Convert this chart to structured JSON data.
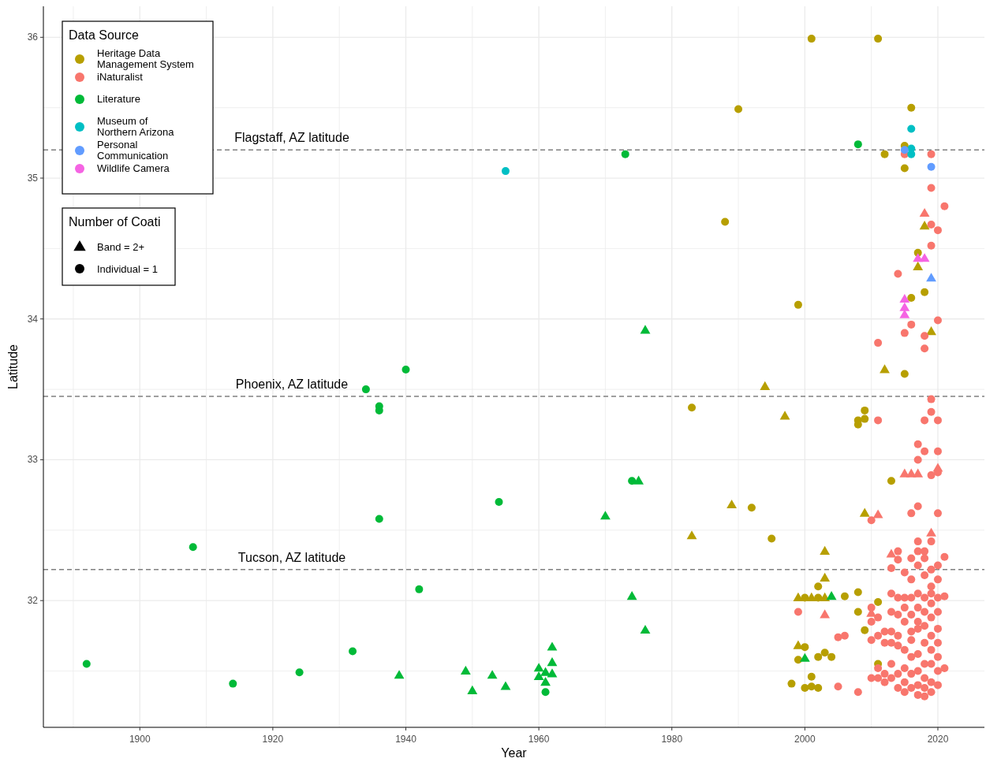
{
  "chart_data": {
    "type": "scatter",
    "xlabel": "Year",
    "ylabel": "Latitude",
    "legend_title": "Data Source",
    "legend": "top left",
    "grid": true,
    "annotations": [
      "Number of Coati",
      "Band = 2+",
      "Individual = 1"
    ],
    "xlim": [
      1885.5,
      2027
    ],
    "ylim": [
      31.1,
      36.22
    ],
    "xticks": [
      {
        "value": 1890,
        "label": null
      },
      1900,
      {
        "value": 1910,
        "label": null
      },
      1920,
      {
        "value": 1930,
        "label": null
      },
      1940,
      {
        "value": 1950,
        "label": null
      },
      1960,
      {
        "value": 1970,
        "label": null
      },
      1980,
      {
        "value": 1990,
        "label": null
      },
      2000,
      {
        "value": 2010,
        "label": null
      },
      2020
    ],
    "yticks": [
      {
        "value": 31.5,
        "label": null
      },
      32,
      {
        "value": 32.5,
        "label": null
      },
      33,
      {
        "value": 33.5,
        "label": null
      },
      34,
      {
        "value": 34.5,
        "label": null
      },
      35,
      {
        "value": 35.5,
        "label": null
      },
      36
    ],
    "ref_lines": [
      {
        "axis": "y",
        "value": 35.2,
        "label": "Flagstaff, AZ latitude",
        "color": "#808080",
        "line_style": "dashed"
      },
      {
        "axis": "y",
        "value": 33.45,
        "label": "Phoenix, AZ latitude",
        "color": "#808080",
        "line_style": "dashed"
      },
      {
        "axis": "y",
        "value": 32.22,
        "label": "Tucson, AZ latitude",
        "color": "#808080",
        "line_style": "dashed"
      }
    ],
    "series": [
      {
        "name": "Heritage Data Management System",
        "color": "#b79f00",
        "marker": "circle",
        "x": [
          2001,
          2011,
          1990,
          2016,
          2015,
          2012,
          2015,
          1988,
          1999,
          2017,
          2016,
          2018,
          1983,
          2015,
          2009,
          2008,
          2008,
          2009,
          1992,
          1995,
          2013,
          2011,
          2008,
          2006,
          2002,
          2002,
          2004,
          2000,
          2009,
          2011,
          1998,
          2000,
          2001,
          2001,
          2002,
          2003,
          2008,
          1999,
          2000,
          2002
        ],
        "values": [
          35.99,
          35.99,
          35.49,
          35.5,
          35.23,
          35.17,
          35.07,
          34.69,
          34.1,
          34.47,
          34.15,
          34.19,
          33.37,
          33.61,
          33.35,
          33.28,
          33.25,
          33.29,
          32.66,
          32.44,
          32.85,
          31.99,
          32.06,
          32.03,
          32.1,
          31.6,
          31.6,
          31.67,
          31.79,
          31.55,
          31.41,
          31.38,
          31.46,
          31.39,
          31.38,
          31.63,
          31.92,
          31.58,
          32.02,
          32.02
        ]
      },
      {
        "color": "#b79f00",
        "marker": "triangle",
        "x": [
          2012,
          1994,
          1997,
          1989,
          1983,
          2009,
          2003,
          2003,
          1999,
          2001,
          2003,
          1999,
          2018,
          2017,
          2019
        ],
        "values": [
          33.64,
          33.52,
          33.31,
          32.68,
          32.46,
          32.62,
          32.35,
          32.16,
          32.02,
          32.02,
          32.02,
          31.68,
          34.66,
          34.37,
          33.91
        ]
      },
      {
        "name": "iNaturalist",
        "color": "#f8766d",
        "marker": "circle",
        "x": [
          2015,
          2019,
          2019,
          2021,
          2019,
          2020,
          2019,
          2014,
          2016,
          2020,
          2015,
          2018,
          2018,
          2011,
          2019,
          2019,
          2018,
          2020,
          2011,
          2017,
          2018,
          2020,
          2017,
          2019,
          2020,
          2016,
          2017,
          2020,
          2010,
          2017,
          2019,
          2018,
          2021,
          2014,
          1999,
          2005,
          2006,
          2008,
          2005,
          2010,
          2010,
          2010,
          2010,
          2011,
          2011,
          2011,
          2011,
          2012,
          2012,
          2012,
          2012,
          2013,
          2013,
          2013,
          2013,
          2013,
          2013,
          2013,
          2014,
          2014,
          2014,
          2014,
          2014,
          2014,
          2014,
          2015,
          2015,
          2015,
          2015,
          2015,
          2015,
          2015,
          2015,
          2016,
          2016,
          2016,
          2016,
          2016,
          2016,
          2016,
          2016,
          2016,
          2017,
          2017,
          2017,
          2017,
          2017,
          2017,
          2017,
          2017,
          2017,
          2017,
          2018,
          2018,
          2018,
          2018,
          2018,
          2018,
          2018,
          2018,
          2018,
          2018,
          2019,
          2019,
          2019,
          2019,
          2019,
          2019,
          2019,
          2019,
          2019,
          2019,
          2020,
          2020,
          2020,
          2020,
          2020,
          2020,
          2020,
          2020,
          2020,
          2021,
          2021
        ],
        "values": [
          35.17,
          35.17,
          34.93,
          34.8,
          34.67,
          34.63,
          34.52,
          34.32,
          33.96,
          33.99,
          33.9,
          33.88,
          33.79,
          33.83,
          33.43,
          33.34,
          33.28,
          33.28,
          33.28,
          33.11,
          33.06,
          33.06,
          33.0,
          32.89,
          32.91,
          32.62,
          32.67,
          32.62,
          32.57,
          32.42,
          32.42,
          32.35,
          32.31,
          32.29,
          31.92,
          31.74,
          31.75,
          31.35,
          31.39,
          31.95,
          31.85,
          31.72,
          31.45,
          31.88,
          31.75,
          31.45,
          31.52,
          31.7,
          31.78,
          31.42,
          31.48,
          32.23,
          32.05,
          31.92,
          31.78,
          31.7,
          31.55,
          31.45,
          32.35,
          32.02,
          31.9,
          31.75,
          31.68,
          31.48,
          31.38,
          32.2,
          32.02,
          31.95,
          31.85,
          31.65,
          31.52,
          31.42,
          31.35,
          32.3,
          32.15,
          32.02,
          31.9,
          31.78,
          31.72,
          31.6,
          31.48,
          31.38,
          32.35,
          32.25,
          32.05,
          31.95,
          31.85,
          31.8,
          31.62,
          31.5,
          31.4,
          31.33,
          32.3,
          32.18,
          32.02,
          31.92,
          31.82,
          31.7,
          31.55,
          31.45,
          31.38,
          31.32,
          32.22,
          32.1,
          32.05,
          31.98,
          31.88,
          31.75,
          31.65,
          31.55,
          31.42,
          31.35,
          32.25,
          32.15,
          32.02,
          31.92,
          31.8,
          31.7,
          31.6,
          31.5,
          31.4,
          32.03,
          31.52
        ]
      },
      {
        "color": "#f8766d",
        "marker": "triangle",
        "x": [
          2018,
          2015,
          2016,
          2017,
          2020,
          2011,
          2003,
          2010,
          2013,
          2019
        ],
        "values": [
          34.75,
          32.9,
          32.9,
          32.9,
          32.94,
          32.61,
          31.9,
          31.91,
          32.33,
          32.48
        ]
      },
      {
        "name": "Literature",
        "color": "#00ba38",
        "marker": "circle",
        "x": [
          1892,
          1908,
          1914,
          1924,
          1932,
          1934,
          1936,
          1936,
          1936,
          1940,
          1942,
          1954,
          1961,
          1973,
          1974,
          2008
        ],
        "values": [
          31.55,
          32.38,
          31.41,
          31.49,
          31.64,
          33.5,
          33.38,
          33.35,
          32.58,
          33.64,
          32.08,
          32.7,
          31.35,
          35.17,
          32.85,
          35.24
        ]
      },
      {
        "color": "#00ba38",
        "marker": "triangle",
        "x": [
          1939,
          1949,
          1950,
          1953,
          1955,
          1960,
          1960,
          1961,
          1962,
          1962,
          1962,
          1961,
          1970,
          1975,
          1976,
          1974,
          1976,
          2004,
          2000
        ],
        "values": [
          31.47,
          31.5,
          31.36,
          31.47,
          31.39,
          31.52,
          31.46,
          31.49,
          31.48,
          31.56,
          31.67,
          31.42,
          32.6,
          32.85,
          33.92,
          32.03,
          31.79,
          32.03,
          31.59
        ]
      },
      {
        "name": "Museum of Northern Arizona",
        "color": "#00bfc4",
        "marker": "circle",
        "x": [
          1955,
          2016,
          2016,
          2016
        ],
        "values": [
          35.05,
          35.35,
          35.21,
          35.17
        ]
      },
      {
        "name": "Personal Communication",
        "color": "#619cff",
        "marker": "circle",
        "x": [
          2019,
          2015
        ],
        "values": [
          35.08,
          35.2
        ]
      },
      {
        "color": "#619cff",
        "marker": "triangle",
        "x": [
          2019
        ],
        "values": [
          34.29
        ]
      },
      {
        "name": "Wildlife Camera",
        "color": "#f564e3",
        "marker": "triangle",
        "x": [
          2015,
          2015,
          2015,
          2017,
          2018
        ],
        "values": [
          34.14,
          34.08,
          34.03,
          34.43,
          34.43
        ]
      }
    ]
  }
}
